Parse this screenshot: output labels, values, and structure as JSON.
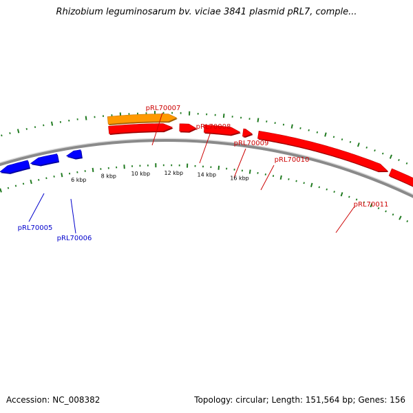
{
  "title": "Rhizobium leguminosarum bv. viciae 3841 plasmid pRL7, comple...",
  "footer": {
    "accession": "Accession: NC_008382",
    "summary": "Topology: circular; Length: 151,564 bp; Genes: 156"
  },
  "colors": {
    "backbone": "#8a8a8a",
    "tick": "#1f7a1f",
    "forward_gene": "#ff0000",
    "reverse_gene": "#0000ff",
    "highlight_gene": "#ff9900",
    "forward_label": "#cc0000",
    "reverse_label": "#0000cc"
  },
  "scale": {
    "unit": "kbp",
    "labeled_ticks": [
      {
        "kbp": 6,
        "label": "6 kbp"
      },
      {
        "kbp": 8,
        "label": "8 kbp"
      },
      {
        "kbp": 10,
        "label": "10 kbp"
      },
      {
        "kbp": 12,
        "label": "12 kbp"
      },
      {
        "kbp": 14,
        "label": "14 kbp"
      },
      {
        "kbp": 16,
        "label": "16 kbp"
      }
    ]
  },
  "genes": [
    {
      "id": "pRL70005",
      "strand": "reverse",
      "color": "reverse_gene",
      "label": "pRL70005",
      "labeled": true
    },
    {
      "id": "pRL70006",
      "strand": "reverse",
      "color": "reverse_gene",
      "label": "pRL70006",
      "labeled": true
    },
    {
      "id": "pRL70006b",
      "strand": "reverse",
      "color": "reverse_gene",
      "label": "",
      "labeled": false
    },
    {
      "id": "pRL70007",
      "strand": "forward",
      "color": "highlight_gene",
      "label": "pRL70007",
      "labeled": true
    },
    {
      "id": "pRL70007r",
      "strand": "forward",
      "color": "forward_gene",
      "label": "",
      "labeled": false
    },
    {
      "id": "pRL70008",
      "strand": "forward",
      "color": "forward_gene",
      "label": "pRL70008",
      "labeled": true
    },
    {
      "id": "pRL70009",
      "strand": "forward",
      "color": "forward_gene",
      "label": "pRL70009",
      "labeled": true
    },
    {
      "id": "pRL70010",
      "strand": "forward",
      "color": "forward_gene",
      "label": "pRL70010",
      "labeled": true
    },
    {
      "id": "pRL70011",
      "strand": "forward",
      "color": "forward_gene",
      "label": "pRL70011",
      "labeled": true
    },
    {
      "id": "pRL70012",
      "strand": "forward",
      "color": "forward_gene",
      "label": "",
      "labeled": false
    }
  ]
}
